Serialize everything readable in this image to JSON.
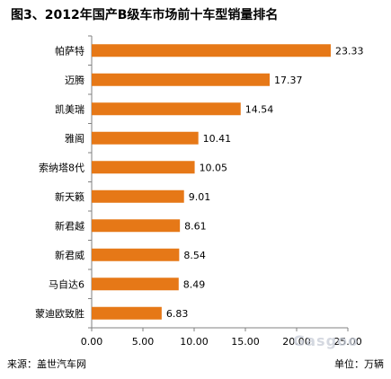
{
  "chart_data": {
    "type": "bar",
    "orientation": "horizontal",
    "title": "图3、2012年国产B级车市场前十车型销量排名",
    "categories": [
      "帕萨特",
      "迈腾",
      "凯美瑞",
      "雅阁",
      "索纳塔8代",
      "新天籁",
      "新君越",
      "新君威",
      "马自达6",
      "蒙迪欧致胜"
    ],
    "values": [
      23.33,
      17.37,
      14.54,
      10.41,
      10.05,
      9.01,
      8.61,
      8.54,
      8.49,
      6.83
    ],
    "value_labels": [
      "23.33",
      "17.37",
      "14.54",
      "10.41",
      "10.05",
      "9.01",
      "8.61",
      "8.54",
      "8.49",
      "6.83"
    ],
    "x_ticks": [
      "0.00",
      "5.00",
      "10.00",
      "15.00",
      "20.00",
      "25.00"
    ],
    "xlim": [
      0,
      25
    ],
    "bar_color": "#e67817",
    "grid": false
  },
  "footer": {
    "source": "来源：盖世汽车网",
    "unit": "单位：万辆"
  },
  "watermark": "Gasgoo"
}
